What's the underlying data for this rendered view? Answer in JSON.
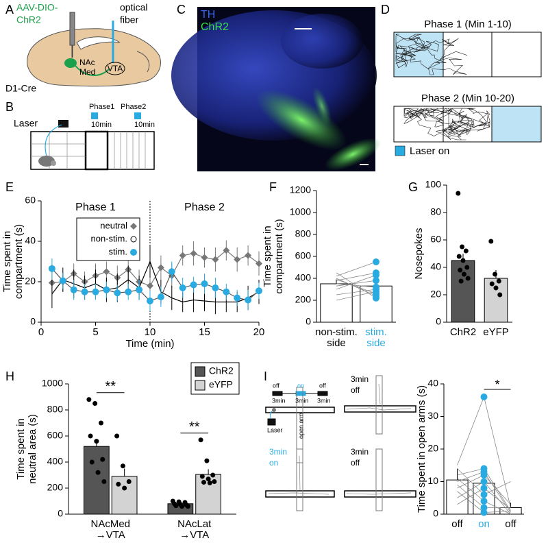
{
  "panel_labels": [
    "A",
    "B",
    "C",
    "D",
    "E",
    "F",
    "G",
    "H",
    "I"
  ],
  "panel_a": {
    "virus": [
      "AAV-DIO-",
      "ChR2"
    ],
    "fiber": [
      "optical",
      "fiber"
    ],
    "nac": [
      "NAc",
      "Med"
    ],
    "vta": "VTA",
    "mouse": "D1-Cre"
  },
  "panel_b": {
    "laser": "Laser",
    "phases": [
      {
        "name": "Phase1",
        "duration": "10min"
      },
      {
        "name": "Phase2",
        "duration": "10min"
      }
    ]
  },
  "panel_c": {
    "stains": [
      "TH",
      "ChR2"
    ]
  },
  "panel_d": {
    "phases": [
      "Phase 1 (Min 1-10)",
      "Phase 2 (Min 10-20)"
    ],
    "legend": "Laser on"
  },
  "panel_i": {
    "schedule": [
      "off",
      "on",
      "off"
    ],
    "durations": [
      "3min",
      "3min",
      "3min"
    ],
    "laser": "Laser",
    "arm": "open arm",
    "mazes": [
      [
        "3min",
        "off"
      ],
      [
        "3min",
        "on"
      ],
      [
        "3min",
        "off"
      ]
    ]
  },
  "chart_data": [
    {
      "type": "line",
      "xlabel": "Time (min)",
      "ylabel": [
        "Time spent in",
        "compartment (s)"
      ],
      "annotations": [
        "Phase 1",
        "Phase 2"
      ],
      "divider": 10,
      "legend": "top-left",
      "x": [
        1,
        2,
        3,
        4,
        5,
        6,
        7,
        8,
        9,
        10,
        11,
        12,
        13,
        14,
        15,
        16,
        17,
        18,
        19,
        20
      ],
      "series": [
        {
          "name": "neutral",
          "color": "#777777",
          "marker": "diamond",
          "values": [
            19.5,
            20,
            24,
            20,
            23,
            25,
            22,
            26,
            20,
            18,
            27,
            23,
            33,
            34,
            32,
            31,
            35.5,
            31,
            33,
            29
          ],
          "errors": [
            6,
            5,
            5,
            5,
            6,
            5,
            6,
            6,
            6,
            5,
            6,
            6,
            5,
            6,
            5,
            6,
            5,
            6,
            5,
            6
          ]
        },
        {
          "name": "non-stim.",
          "color": "#000000",
          "marker": "none",
          "legend_marker": "open-circle",
          "values": [
            14,
            21,
            19,
            17,
            19,
            16,
            17,
            21,
            17,
            30,
            15,
            12,
            10,
            11,
            10.5,
            10,
            10,
            10,
            12,
            15
          ],
          "errors": [
            7,
            6,
            7,
            6,
            7,
            6,
            7,
            7,
            6,
            8,
            6,
            6,
            5,
            6,
            5,
            6,
            5,
            5,
            6,
            6
          ]
        },
        {
          "name": "stim.",
          "color": "#29abe2",
          "marker": "circle",
          "values": [
            26.5,
            20.5,
            16,
            15,
            15,
            16,
            14.5,
            15,
            16,
            10.5,
            12.5,
            25,
            17,
            18.5,
            19,
            17,
            15,
            12,
            11,
            15.5
          ],
          "errors": [
            5,
            4,
            5,
            4,
            4,
            4,
            4,
            4,
            5,
            5,
            5,
            5,
            5,
            4,
            5,
            5,
            4,
            4,
            5,
            4
          ]
        }
      ],
      "xlim": [
        0,
        20
      ],
      "xticks": [
        0,
        5,
        10,
        15,
        20
      ],
      "ylim": [
        0,
        60
      ],
      "yticks": [
        0,
        20,
        40,
        60
      ]
    },
    {
      "type": "paired_bar",
      "ylabel": [
        "Time spent in",
        "compartment (s)"
      ],
      "categories": [
        [
          "non-stim.",
          "side"
        ],
        [
          "stim.",
          "side"
        ]
      ],
      "category_colors": [
        "#000000",
        "#29abe2"
      ],
      "values": [
        350,
        330
      ],
      "errors": [
        40,
        35
      ],
      "marker_color": "#29abe2",
      "markers_on": [
        false,
        true
      ],
      "points": [
        [
          420,
          380,
          300,
          250,
          200,
          450,
          400,
          350,
          330,
          390
        ],
        [
          550,
          450,
          430,
          300,
          280,
          220,
          240,
          320,
          380,
          260
        ]
      ],
      "ylim": [
        0,
        1200
      ],
      "yticks": [
        0,
        200,
        400,
        600,
        800,
        1000,
        1200
      ]
    },
    {
      "type": "bar",
      "ylabel": "Nosepokes",
      "categories": [
        "ChR2",
        "eYFP"
      ],
      "colors": [
        "#555555",
        "#d3d3d3"
      ],
      "values": [
        45,
        32
      ],
      "errors": [
        5,
        6
      ],
      "points": [
        [
          94,
          55,
          52,
          48,
          45,
          40,
          38,
          35,
          32,
          30
        ],
        [
          59,
          35,
          30,
          28,
          25,
          20
        ]
      ],
      "ylim": [
        0,
        100
      ],
      "yticks": [
        0,
        20,
        40,
        60,
        80,
        100
      ]
    },
    {
      "type": "grouped_bar",
      "ylabel": [
        "Time spent in",
        "neutral area (s)"
      ],
      "categories": [
        [
          "NAcMed",
          "→VTA"
        ],
        [
          "NAcLat",
          "→VTA"
        ]
      ],
      "legend": "top-right",
      "series": [
        {
          "name": "ChR2",
          "color": "#555555",
          "values": [
            520,
            80
          ],
          "errors": [
            55,
            10
          ],
          "points": [
            [
              880,
              850,
              700,
              600,
              560,
              420,
              400,
              320,
              250
            ],
            [
              100,
              95,
              90,
              80,
              75,
              70,
              65,
              60,
              60
            ]
          ]
        },
        {
          "name": "eYFP",
          "color": "#d3d3d3",
          "values": [
            290,
            305
          ],
          "errors": [
            60,
            40
          ],
          "points": [
            [
              600,
              370,
              250,
              230,
              200
            ],
            [
              570,
              410,
              300,
              290,
              270,
              250,
              245,
              240
            ]
          ]
        }
      ],
      "significance": [
        "**",
        "**"
      ],
      "ylim": [
        0,
        1000
      ],
      "yticks": [
        0,
        200,
        400,
        600,
        800,
        1000
      ]
    },
    {
      "type": "paired_bar",
      "ylabel": "Time spent in open arms (s)",
      "categories": [
        "off",
        "on",
        "off"
      ],
      "category_colors": [
        "#000000",
        "#29abe2",
        "#000000"
      ],
      "values": [
        10.5,
        9.5,
        2
      ],
      "errors": [
        3.5,
        3,
        1.5
      ],
      "marker_color": "#29abe2",
      "markers_on": [
        false,
        true,
        false
      ],
      "points": [
        [
          15,
          12,
          10,
          8,
          5,
          3,
          14,
          11,
          9,
          7
        ],
        [
          36,
          14,
          13,
          12,
          10,
          8,
          6,
          4,
          2,
          0.5
        ],
        [
          2,
          1,
          0.5,
          3,
          0,
          1.5,
          10,
          0,
          2,
          1
        ]
      ],
      "significance": [
        {
          "between": [
            1,
            2
          ],
          "label": "*"
        }
      ],
      "ylim": [
        0,
        40
      ],
      "yticks": [
        0,
        10,
        20,
        30,
        40
      ]
    }
  ]
}
